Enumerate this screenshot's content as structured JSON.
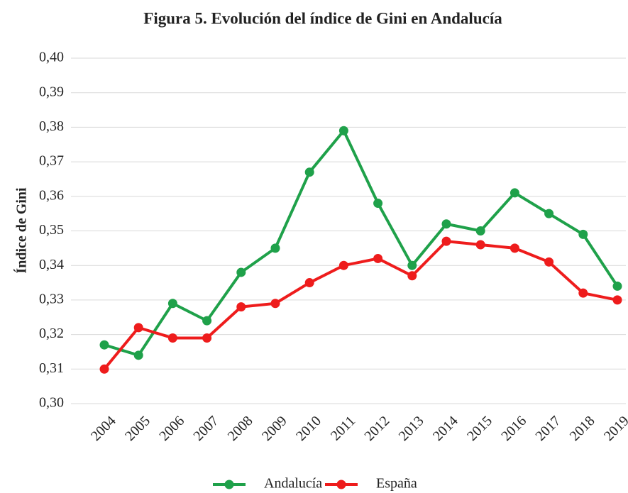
{
  "chart_data": {
    "type": "line",
    "title": "Figura 5. Evolución del índice de Gini en Andalucía",
    "y_label": "Índice de Gini",
    "categories": [
      "2004",
      "2005",
      "2006",
      "2007",
      "2008",
      "2009",
      "2010",
      "2011",
      "2012",
      "2013",
      "2014",
      "2015",
      "2016",
      "2017",
      "2018",
      "2019"
    ],
    "series": [
      {
        "name": "Andalucía",
        "color": "#1fa14a",
        "values": [
          0.317,
          0.314,
          0.329,
          0.324,
          0.338,
          0.345,
          0.367,
          0.379,
          0.358,
          0.34,
          0.352,
          0.35,
          0.361,
          0.355,
          0.349,
          0.334
        ]
      },
      {
        "name": "España",
        "color": "#ee1c1c",
        "values": [
          0.31,
          0.322,
          0.319,
          0.319,
          0.328,
          0.329,
          0.335,
          0.34,
          0.342,
          0.337,
          0.347,
          0.346,
          0.345,
          0.341,
          0.332,
          0.33
        ]
      }
    ],
    "ylim": [
      0.3,
      0.4
    ],
    "yticks": [
      {
        "value": 0.3,
        "label": "0,30"
      },
      {
        "value": 0.31,
        "label": "0,31"
      },
      {
        "value": 0.32,
        "label": "0,32"
      },
      {
        "value": 0.33,
        "label": "0,33"
      },
      {
        "value": 0.34,
        "label": "0,34"
      },
      {
        "value": 0.35,
        "label": "0,35"
      },
      {
        "value": 0.36,
        "label": "0,36"
      },
      {
        "value": 0.37,
        "label": "0,37"
      },
      {
        "value": 0.38,
        "label": "0,38"
      },
      {
        "value": 0.39,
        "label": "0,39"
      },
      {
        "value": 0.4,
        "label": "0,40"
      }
    ],
    "grid": true,
    "legend": "bottom"
  }
}
